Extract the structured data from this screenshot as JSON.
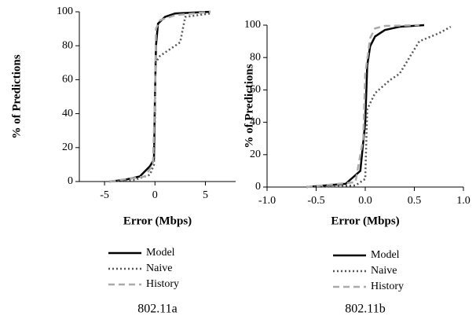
{
  "chart_data": [
    {
      "type": "line",
      "caption": "802.11a",
      "x_label": "Error (Mbps)",
      "y_label": "% of Predictions",
      "xlim": [
        -7.5,
        8
      ],
      "xticks": [
        -5,
        0,
        5
      ],
      "ylim": [
        0,
        100
      ],
      "yticks": [
        0,
        20,
        40,
        60,
        80,
        100
      ],
      "series": [
        {
          "name": "Model",
          "color": "#000000",
          "dash": "none",
          "x": [
            -4.5,
            -3,
            -1.5,
            -1,
            -0.5,
            -0.1,
            0,
            0.1,
            0.3,
            1,
            2,
            5.5
          ],
          "values": [
            0,
            1,
            3,
            6,
            9,
            13,
            50,
            80,
            93,
            97,
            99,
            100
          ]
        },
        {
          "name": "Naive",
          "color": "#555555",
          "dash": "2,3",
          "x": [
            -4.5,
            -2,
            -0.5,
            -0.1,
            0,
            0.05,
            0.5,
            1,
            2,
            2.5,
            3,
            5.5
          ],
          "values": [
            0,
            1,
            4,
            10,
            40,
            70,
            74,
            76,
            80,
            82,
            97,
            99
          ]
        },
        {
          "name": "History",
          "color": "#aaaaaa",
          "dash": "8,5",
          "x": [
            -4.5,
            -1,
            -0.2,
            0,
            0.1,
            0.5,
            2,
            5.5
          ],
          "values": [
            0,
            3,
            10,
            50,
            90,
            95,
            98,
            100
          ]
        }
      ]
    },
    {
      "type": "line",
      "caption": "802.11b",
      "x_label": "Error (Mbps)",
      "y_label": "% of Predictions",
      "xlim": [
        -1,
        1
      ],
      "xticks": [
        {
          "value": -1,
          "label": "-1.0"
        },
        -0.5,
        {
          "value": 0,
          "label": "0.0"
        },
        0.5,
        {
          "value": 1,
          "label": "1.0"
        }
      ],
      "ylim": [
        0,
        100
      ],
      "yticks": [
        0,
        20,
        40,
        60,
        80,
        100
      ],
      "series": [
        {
          "name": "Model",
          "color": "#000000",
          "dash": "none",
          "x": [
            -0.6,
            -0.2,
            -0.05,
            0,
            0.02,
            0.05,
            0.1,
            0.2,
            0.35,
            0.6
          ],
          "values": [
            0,
            2,
            10,
            40,
            75,
            87,
            93,
            97,
            99,
            100
          ]
        },
        {
          "name": "Naive",
          "color": "#555555",
          "dash": "2,3",
          "x": [
            -0.6,
            -0.1,
            0,
            0.02,
            0.1,
            0.25,
            0.35,
            0.45,
            0.55,
            0.75,
            0.87
          ],
          "values": [
            0,
            1,
            5,
            48,
            58,
            66,
            70,
            80,
            90,
            95,
            99
          ]
        },
        {
          "name": "History",
          "color": "#aaaaaa",
          "dash": "8,5",
          "x": [
            -0.6,
            -0.1,
            -0.02,
            0,
            0.05,
            0.1,
            0.2,
            0.55
          ],
          "values": [
            0,
            3,
            30,
            70,
            92,
            98,
            99.5,
            100
          ]
        }
      ]
    }
  ]
}
